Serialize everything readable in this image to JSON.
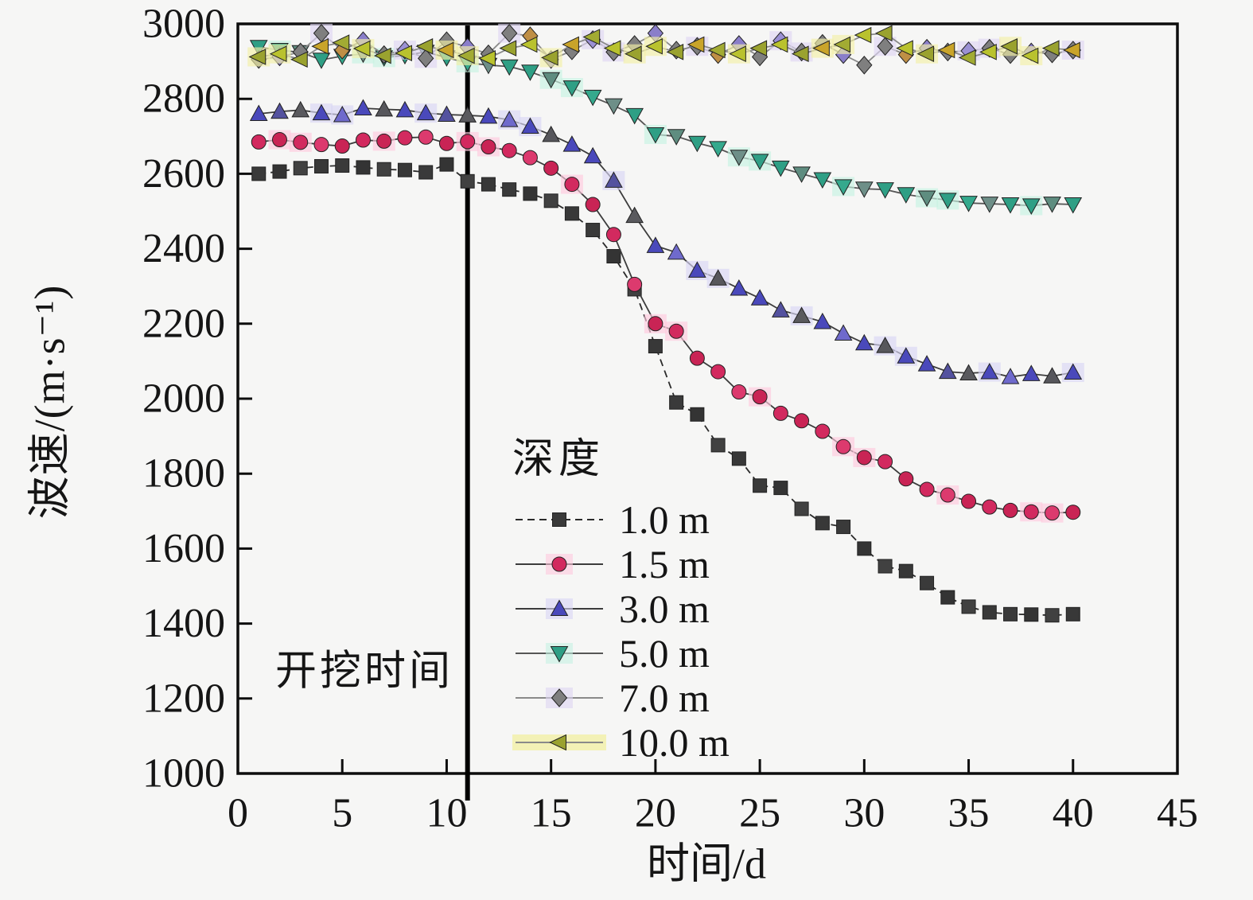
{
  "figure": {
    "background": "#f6f6f5",
    "frame_color": "#0d0d0d",
    "tick_color": "#0d0d0d",
    "text_color": "#151515"
  },
  "annotation": {
    "text": "开挖时间",
    "line_x": 11,
    "line_color": "#000000"
  },
  "legend": {
    "title": "深度",
    "position": "center-bottom-inside"
  },
  "chart_data": {
    "type": "line",
    "title": "",
    "xlabel": "时间/d",
    "ylabel": "波速/(m·s⁻¹)",
    "xlim": [
      0,
      45
    ],
    "ylim": [
      1000,
      3000
    ],
    "xticks": [
      0,
      5,
      10,
      15,
      20,
      25,
      30,
      35,
      40,
      45
    ],
    "yticks": [
      1000,
      1200,
      1400,
      1600,
      1800,
      2000,
      2200,
      2400,
      2600,
      2800,
      3000
    ],
    "grid": false,
    "legend_position": "inside-center-bottom",
    "x": [
      1,
      2,
      3,
      4,
      5,
      6,
      7,
      8,
      9,
      10,
      11,
      12,
      13,
      14,
      15,
      16,
      17,
      18,
      19,
      20,
      21,
      22,
      23,
      24,
      25,
      26,
      27,
      28,
      29,
      30,
      31,
      32,
      33,
      34,
      35,
      36,
      37,
      38,
      39,
      40
    ],
    "series": [
      {
        "name": "1.0 m",
        "marker": "square",
        "color": "#3a3a3a",
        "variants": [
          "#3a3a3a",
          "#343434",
          "#414141",
          "#383838"
        ],
        "halo": null,
        "legend_band": false,
        "line_color": "#2b2b2b",
        "line_dash": "9 6",
        "values": [
          2600,
          2606,
          2615,
          2620,
          2622,
          2617,
          2612,
          2610,
          2604,
          2625,
          2580,
          2572,
          2558,
          2547,
          2528,
          2494,
          2450,
          2380,
          2292,
          2140,
          1990,
          1958,
          1876,
          1840,
          1768,
          1762,
          1706,
          1668,
          1658,
          1600,
          1553,
          1540,
          1508,
          1470,
          1445,
          1430,
          1425,
          1424,
          1422,
          1425
        ]
      },
      {
        "name": "1.5 m",
        "marker": "circle",
        "color": "#d22a5f",
        "variants": [
          "#d22a5f",
          "#c92455",
          "#d22a5f",
          "#dc3a6e",
          "#c92455"
        ],
        "halo": "#ffc9dd",
        "legend_band": false,
        "line_color": "#3c3c3c",
        "line_dash": "",
        "values": [
          2685,
          2691,
          2684,
          2678,
          2674,
          2690,
          2687,
          2696,
          2698,
          2681,
          2686,
          2672,
          2662,
          2643,
          2615,
          2572,
          2518,
          2438,
          2305,
          2200,
          2180,
          2108,
          2072,
          2018,
          2005,
          1961,
          1941,
          1913,
          1872,
          1843,
          1832,
          1786,
          1758,
          1743,
          1726,
          1711,
          1702,
          1698,
          1695,
          1697
        ]
      },
      {
        "name": "3.0 m",
        "marker": "triangle-up",
        "color": "#4a49bb",
        "variants": [
          "#4a49bb",
          "#54529f",
          "#5a5a5e",
          "#4a49bb",
          "#6f6acc",
          "#4a49bb",
          "#57575c",
          "#4a49bb"
        ],
        "halo": "#d9d6f5",
        "legend_band": false,
        "line_color": "#3c3c3c",
        "line_dash": "",
        "values": [
          2760,
          2766,
          2770,
          2762,
          2757,
          2775,
          2772,
          2770,
          2762,
          2758,
          2756,
          2753,
          2744,
          2726,
          2704,
          2678,
          2647,
          2582,
          2488,
          2408,
          2390,
          2342,
          2321,
          2294,
          2268,
          2236,
          2221,
          2205,
          2174,
          2148,
          2141,
          2113,
          2092,
          2072,
          2068,
          2071,
          2058,
          2066,
          2060,
          2070
        ]
      },
      {
        "name": "5.0 m",
        "marker": "triangle-down",
        "color": "#2f9f85",
        "variants": [
          "#2f9f85",
          "#2f9f85",
          "#5f8d80",
          "#2f9f85",
          "#35a98d",
          "#6e8f88"
        ],
        "halo": "#c6f2e2",
        "legend_band": false,
        "line_color": "#565656",
        "line_dash": "",
        "values": [
          2938,
          2930,
          2924,
          2904,
          2914,
          2920,
          2910,
          2916,
          2925,
          2910,
          2896,
          2890,
          2886,
          2872,
          2852,
          2830,
          2805,
          2782,
          2756,
          2705,
          2700,
          2682,
          2668,
          2645,
          2634,
          2616,
          2600,
          2585,
          2566,
          2560,
          2558,
          2545,
          2536,
          2530,
          2522,
          2520,
          2518,
          2515,
          2520,
          2518
        ]
      },
      {
        "name": "7.0 m",
        "marker": "diamond",
        "color": "#7f7f7f",
        "variants": [
          "#7f7f7f",
          "#8a7ec9",
          "#7f7f7f",
          "#7f7f7f",
          "#bf8f45",
          "#8a7ec9",
          "#7f7f7f",
          "#9b90d4",
          "#7f7f7f"
        ],
        "halo": "#ded6f2",
        "legend_band": false,
        "line_color": "#8a8a8a",
        "line_dash": "",
        "values": [
          2905,
          2912,
          2925,
          2975,
          2930,
          2955,
          2918,
          2930,
          2908,
          2955,
          2938,
          2920,
          2975,
          2968,
          2905,
          2928,
          2958,
          2925,
          2945,
          2975,
          2930,
          2940,
          2918,
          2945,
          2912,
          2955,
          2925,
          2948,
          2918,
          2890,
          2940,
          2918,
          2935,
          2925,
          2928,
          2935,
          2918,
          2925,
          2920,
          2930
        ]
      },
      {
        "name": "10.0 m",
        "marker": "triangle-left",
        "color": "#9aa22f",
        "variants": [
          "#9aa22f",
          "#b9c22e",
          "#9aa22f",
          "#c9a42a",
          "#a2ab33",
          "#b9c22e"
        ],
        "halo": "#f3f0a6",
        "legend_band": true,
        "line_color": "#8a8a8a",
        "line_dash": "",
        "values": [
          2912,
          2920,
          2905,
          2940,
          2950,
          2934,
          2915,
          2922,
          2940,
          2930,
          2915,
          2908,
          2935,
          2945,
          2910,
          2945,
          2965,
          2935,
          2920,
          2940,
          2925,
          2945,
          2930,
          2920,
          2935,
          2945,
          2920,
          2935,
          2945,
          2970,
          2975,
          2935,
          2920,
          2930,
          2910,
          2925,
          2940,
          2915,
          2935,
          2930
        ]
      }
    ]
  }
}
